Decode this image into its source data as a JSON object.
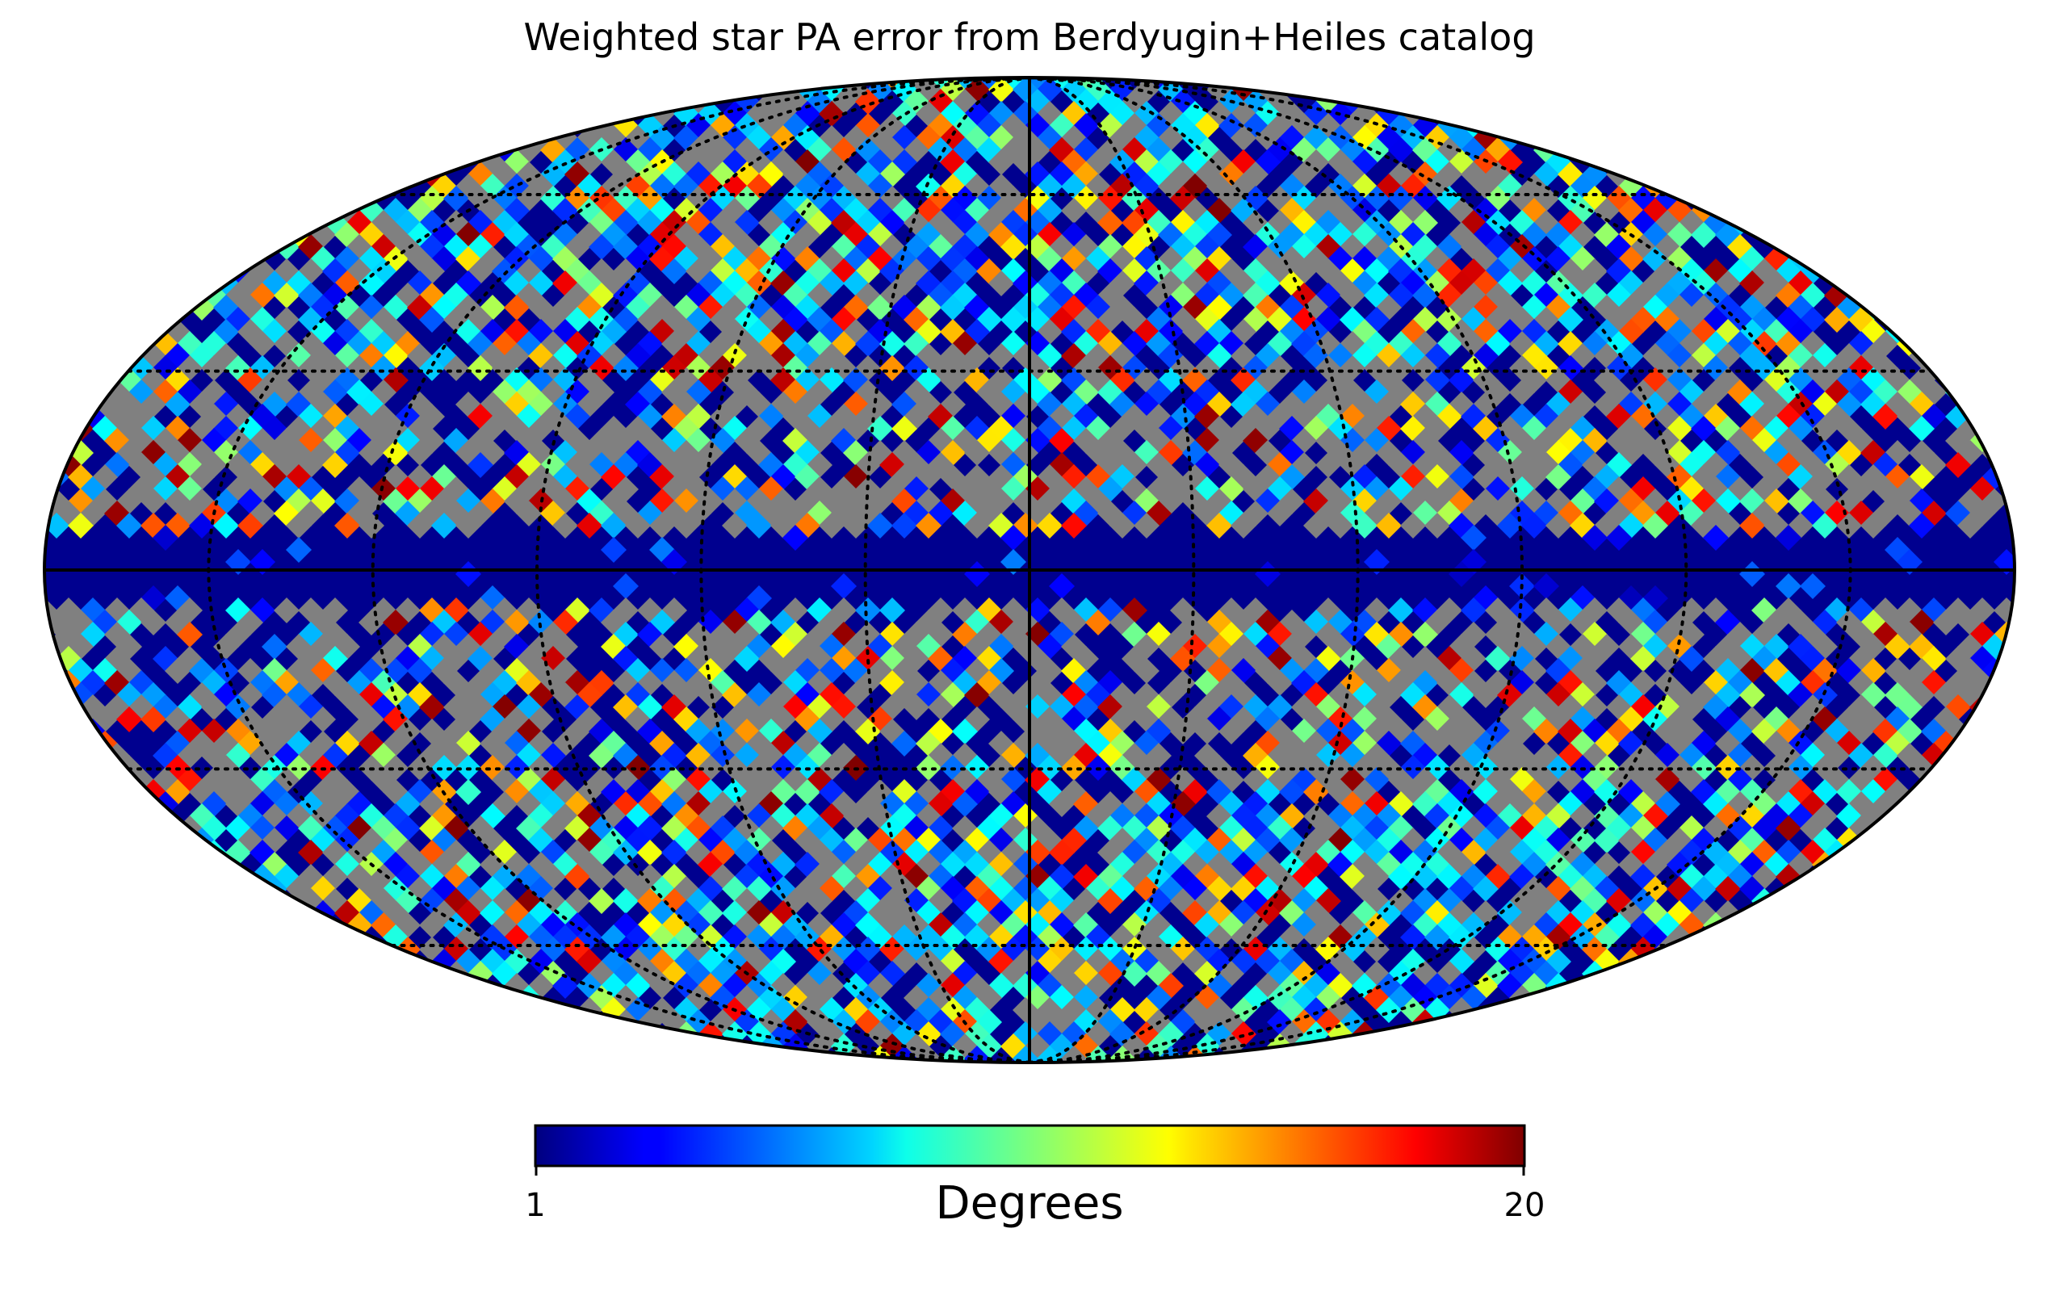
{
  "title": "Weighted star PA error from Berdyugin+Heiles catalog",
  "projection": "mollweide",
  "colormap": "jet",
  "missing_color": "#808080",
  "colorbar": {
    "min_label": "1",
    "max_label": "20",
    "label": "Degrees",
    "min": 1,
    "max": 20
  },
  "graticule": {
    "style": "dotted",
    "parallels_deg": [
      -60,
      -30,
      0,
      30,
      60
    ],
    "meridians_deg": [
      -150,
      -120,
      -90,
      -60,
      -30,
      0,
      30,
      60,
      90,
      120,
      150
    ]
  }
}
